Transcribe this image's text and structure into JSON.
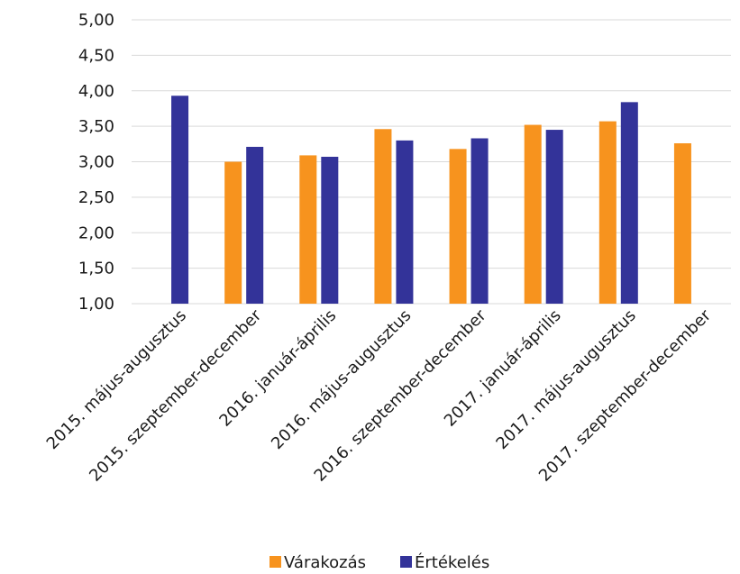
{
  "chart_data": {
    "type": "bar",
    "title": "",
    "xlabel": "",
    "ylabel": "",
    "ylim": [
      1.0,
      5.0
    ],
    "y_ticks": [
      1.0,
      1.5,
      2.0,
      2.5,
      3.0,
      3.5,
      4.0,
      4.5,
      5.0
    ],
    "y_tick_labels": [
      "1,00",
      "1,50",
      "2,00",
      "2,50",
      "3,00",
      "3,50",
      "4,00",
      "4,50",
      "5,00"
    ],
    "grid": true,
    "legend_position": "bottom",
    "categories": [
      "2015. május-augusztus",
      "2015. szeptember-december",
      "2016. január-április",
      "2016. május-augusztus",
      "2016. szeptember-december",
      "2017. január-április",
      "2017. május-augusztus",
      "2017. szeptember-december"
    ],
    "series": [
      {
        "name": "Várakozás",
        "color": "#f7931e",
        "values": [
          null,
          3.0,
          3.09,
          3.46,
          3.18,
          3.52,
          3.57,
          3.26
        ]
      },
      {
        "name": "Értékelés",
        "color": "#333399",
        "values": [
          3.93,
          3.21,
          3.07,
          3.3,
          3.33,
          3.45,
          3.84,
          null
        ]
      }
    ]
  }
}
